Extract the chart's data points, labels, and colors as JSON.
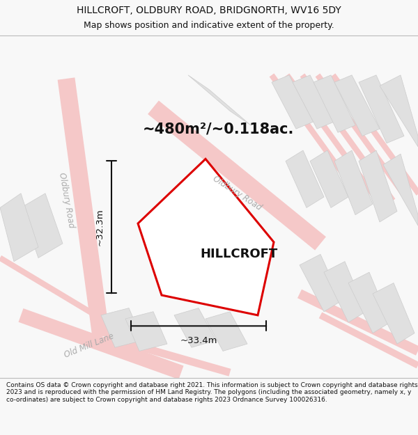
{
  "title_line1": "HILLCROFT, OLDBURY ROAD, BRIDGNORTH, WV16 5DY",
  "title_line2": "Map shows position and indicative extent of the property.",
  "area_text": "~480m²/~0.118ac.",
  "property_label": "HILLCROFT",
  "dim_horizontal": "~33.4m",
  "dim_vertical": "~32.3m",
  "footer_text": "Contains OS data © Crown copyright and database right 2021. This information is subject to Crown copyright and database rights 2023 and is reproduced with the permission of HM Land Registry. The polygons (including the associated geometry, namely x, y co-ordinates) are subject to Crown copyright and database rights 2023 Ordnance Survey 100026316.",
  "bg_color": "#f8f8f8",
  "map_bg_color": "#f5f4f2",
  "property_fill": "#f0f0f0",
  "property_edge_color": "#dd0000",
  "road_label_color": "#aaaaaa",
  "building_fill": "#e0e0e0",
  "building_edge": "#cccccc",
  "road_pink": "#f5c8c8",
  "dim_line_color": "#111111",
  "text_color": "#111111",
  "footer_color": "#111111",
  "title_color": "#111111"
}
